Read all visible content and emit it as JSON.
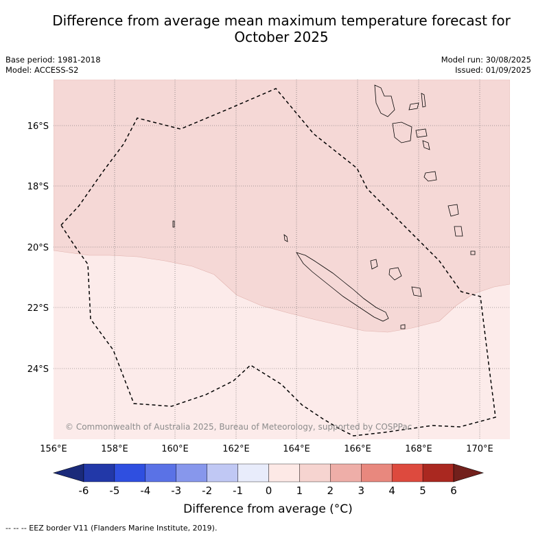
{
  "title_line1": "Difference from average mean maximum temperature forecast for",
  "title_line2": "October 2025",
  "base_period": "Base period: 1981-2018",
  "model": "Model: ACCESS-S2",
  "model_run": "Model run: 30/08/2025",
  "issued": "Issued: 01/09/2025",
  "copyright": "© Commonwealth of Australia 2025, Bureau of Meteorology, supported by COSPPac",
  "lat_ticks": [
    "16°S",
    "18°S",
    "20°S",
    "22°S",
    "24°S"
  ],
  "lon_ticks": [
    "156°E",
    "158°E",
    "160°E",
    "162°E",
    "164°E",
    "166°E",
    "168°E",
    "170°E"
  ],
  "colorbar": {
    "ticks": [
      "-6",
      "-5",
      "-4",
      "-3",
      "-2",
      "-1",
      "0",
      "1",
      "2",
      "3",
      "4",
      "5",
      "6"
    ],
    "colors": [
      "#1a2a7a",
      "#2238a8",
      "#2f4fe0",
      "#5a72e6",
      "#8797ec",
      "#c0c8f4",
      "#e8ecfb",
      "#fde9e6",
      "#f6d4d0",
      "#eeaea8",
      "#e8887e",
      "#dd4a3e",
      "#aa2820",
      "#72201c"
    ],
    "label": "Difference from average (°C)"
  },
  "footer": "--  --  -- EEZ border V11 (Flanders Marine Institute, 2019).",
  "regions": [
    {
      "name": "0-1 °C above average",
      "color": "#fcebea"
    },
    {
      "name": "1-2 °C above average",
      "color": "#f5d8d6"
    }
  ]
}
